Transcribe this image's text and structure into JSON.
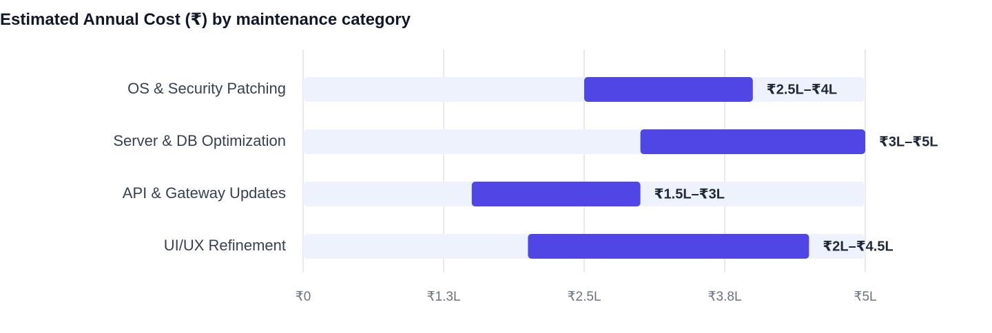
{
  "chart_data": {
    "type": "bar",
    "orientation": "horizontal",
    "title": "Estimated Annual Cost (₹) by maintenance category",
    "xlabel": "",
    "ylabel": "",
    "xlim": [
      0,
      5
    ],
    "x_unit": "lakh ₹",
    "grid": true,
    "legend": "none",
    "x_ticks": [
      {
        "value": 0,
        "label": "₹0"
      },
      {
        "value": 1.25,
        "label": "₹1.3L"
      },
      {
        "value": 2.5,
        "label": "₹2.5L"
      },
      {
        "value": 3.75,
        "label": "₹3.8L"
      },
      {
        "value": 5,
        "label": "₹5L"
      }
    ],
    "categories": [
      "OS & Security Patching",
      "Server & DB Optimization",
      "API & Gateway Updates",
      "UI/UX Refinement"
    ],
    "series": [
      {
        "ranges": [
          {
            "low": 2.5,
            "high": 4,
            "label": "₹2.5L–₹4L"
          },
          {
            "low": 3,
            "high": 5,
            "label": "₹3L–₹5L"
          },
          {
            "low": 1.5,
            "high": 3,
            "label": "₹1.5L–₹3L"
          },
          {
            "low": 2,
            "high": 4.5,
            "label": "₹2L–₹4.5L"
          }
        ]
      }
    ],
    "colors": {
      "bar": "#4f46e5",
      "track": "#eef2fd",
      "grid": "#dfe3ea"
    }
  }
}
